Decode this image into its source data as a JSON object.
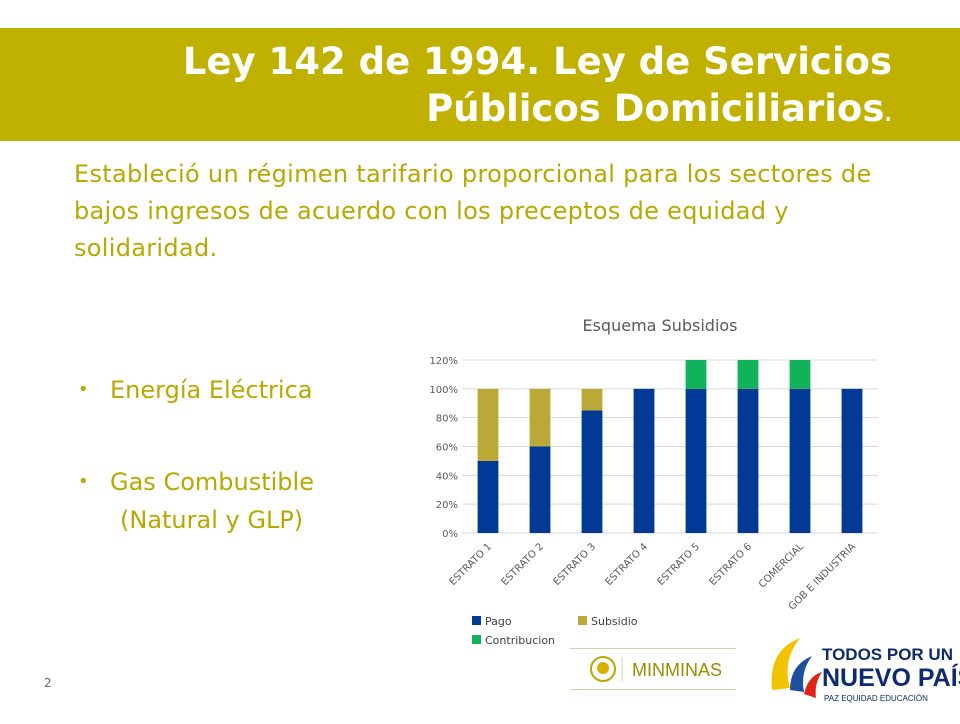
{
  "slide": {
    "title_line1": "Ley 142 de 1994. Ley de Servicios",
    "title_line2": "Públicos Domiciliarios",
    "title_dot": ".",
    "intro": "Estableció un régimen tarifario proporcional para los sectores de bajos ingresos de acuerdo con los preceptos de equidad y solidaridad.",
    "bullets": [
      {
        "text": "Energía Eléctrica"
      },
      {
        "text": "Gas Combustible",
        "sub": "(Natural y GLP)"
      }
    ],
    "bullet_glyph": "•",
    "page_number": "2",
    "logo_minminas": "MINMINAS",
    "logo_right_line1": "TODOS POR UN",
    "logo_right_line2": "NUEVO PAÍS",
    "logo_right_line3": "PAZ  EQUIDAD  EDUCACIÓN"
  },
  "colors": {
    "title_bg": "#c0b000",
    "text_olive": "#b8a800",
    "pago": "#003a96",
    "subsidio": "#bba836",
    "contribucion": "#12b25a"
  },
  "chart_data": {
    "type": "bar",
    "stacked": true,
    "title": "Esquema Subsidios",
    "categories": [
      "ESTRATO 1",
      "ESTRATO 2",
      "ESTRATO 3",
      "ESTRATO 4",
      "ESTRATO 5",
      "ESTRATO 6",
      "COMERCIAL",
      "GOB E INDUSTRIA"
    ],
    "series": [
      {
        "name": "Pago",
        "values": [
          50,
          60,
          85,
          100,
          100,
          100,
          100,
          100
        ]
      },
      {
        "name": "Subsidio",
        "values": [
          50,
          40,
          15,
          0,
          0,
          0,
          0,
          0
        ]
      },
      {
        "name": "Contribucion",
        "values": [
          0,
          0,
          0,
          0,
          20,
          20,
          20,
          0
        ]
      }
    ],
    "yticks": [
      "0%",
      "20%",
      "40%",
      "60%",
      "80%",
      "100%",
      "120%"
    ],
    "ylim": [
      0,
      120
    ],
    "grid": true,
    "legend": "bottom-left"
  }
}
